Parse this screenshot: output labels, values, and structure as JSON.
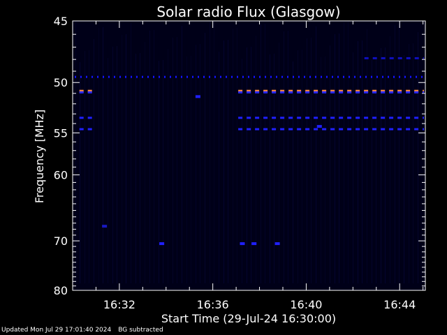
{
  "chart_data": {
    "type": "heatmap",
    "title": "Solar radio Flux (Glasgow)",
    "xlabel": "Start Time (29-Jul-24 16:30:00)",
    "ylabel": "Frequency [MHz]",
    "x_unit": "minutes since 16:30:00",
    "xlim": [
      0,
      15.1
    ],
    "ylim": [
      45,
      80
    ],
    "y_scale": "reciprocal",
    "y_ticks": [
      45,
      50,
      55,
      60,
      70,
      80
    ],
    "x_ticks": [
      {
        "value": 2,
        "label": "16:32"
      },
      {
        "value": 6,
        "label": "16:36"
      },
      {
        "value": 10,
        "label": "16:40"
      },
      {
        "value": 14,
        "label": "16:44"
      }
    ],
    "background_color": "#000018",
    "bands": [
      {
        "freq": 49.5,
        "color": "#1414ff",
        "style": "dotted",
        "segments": [
          [
            0.0,
            15.1
          ]
        ],
        "intensity": "low"
      },
      {
        "freq": 50.8,
        "color": "#ff8a3a",
        "style": "dashed",
        "segments": [
          [
            0.2,
            0.9
          ],
          [
            7.0,
            15.1
          ]
        ],
        "intensity": "high"
      },
      {
        "freq": 50.9,
        "color": "#2a2aff",
        "style": "dashed",
        "segments": [
          [
            0.2,
            0.9
          ],
          [
            7.0,
            15.1
          ]
        ],
        "intensity": "medium"
      },
      {
        "freq": 53.4,
        "color": "#2020ff",
        "style": "dashed",
        "segments": [
          [
            0.2,
            0.9
          ],
          [
            7.0,
            15.1
          ]
        ],
        "intensity": "medium"
      },
      {
        "freq": 54.6,
        "color": "#2020ff",
        "style": "dashed",
        "segments": [
          [
            0.2,
            0.9
          ],
          [
            7.0,
            15.1
          ]
        ],
        "intensity": "medium"
      },
      {
        "freq": 47.9,
        "color": "#1010c0",
        "style": "dashed",
        "segments": [
          [
            12.4,
            15.1
          ]
        ],
        "intensity": "low"
      }
    ],
    "spots": [
      {
        "x": 3.8,
        "freq": 70.5,
        "color": "#2020ff"
      },
      {
        "x": 7.25,
        "freq": 70.5,
        "color": "#2020ff"
      },
      {
        "x": 7.75,
        "freq": 70.5,
        "color": "#2020ff"
      },
      {
        "x": 8.75,
        "freq": 70.5,
        "color": "#2020ff"
      },
      {
        "x": 5.35,
        "freq": 51.3,
        "color": "#2020ff"
      },
      {
        "x": 10.55,
        "freq": 54.3,
        "color": "#2020ff"
      },
      {
        "x": 1.35,
        "freq": 67.5,
        "color": "#1818c0"
      }
    ]
  },
  "footer": {
    "updated": "Updated Mon Jul 29 17:01:40 2024",
    "note": "BG subtracted"
  }
}
